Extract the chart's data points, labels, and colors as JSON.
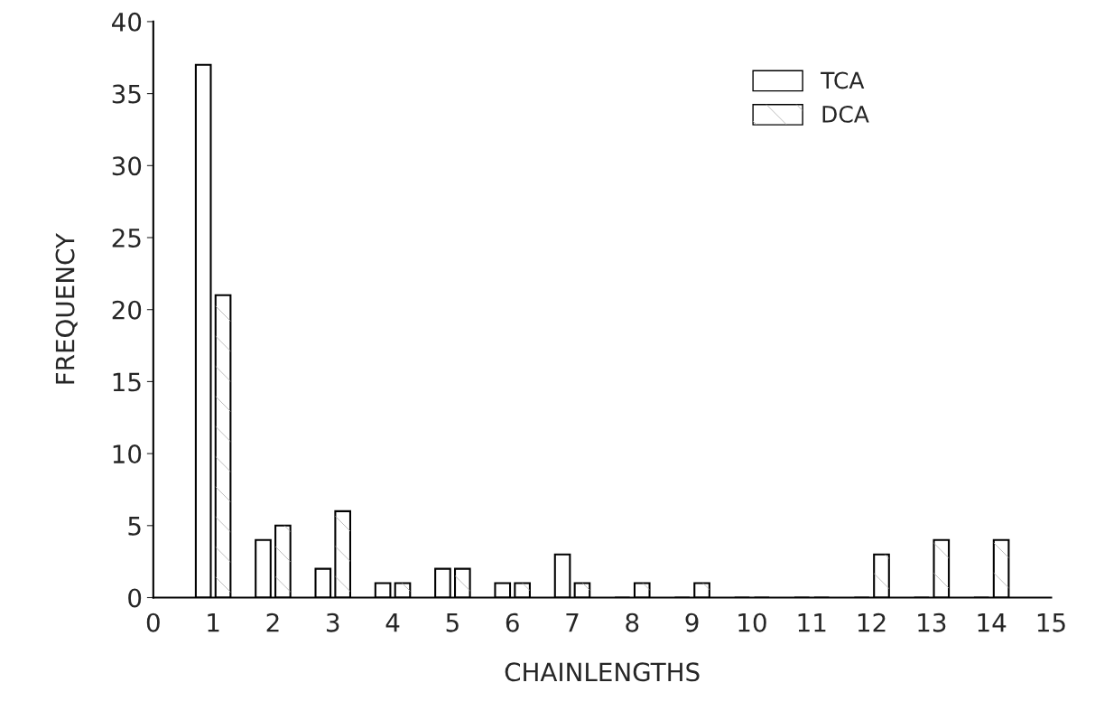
{
  "chart_data": {
    "type": "bar",
    "xlabel": "CHAINLENGTHS",
    "ylabel": "FREQUENCY",
    "x": [
      1,
      2,
      3,
      4,
      5,
      6,
      7,
      8,
      9,
      10,
      11,
      12,
      13,
      14
    ],
    "series": [
      {
        "name": "TCA",
        "color": "#ffffff",
        "values": [
          37,
          4,
          2,
          1,
          2,
          1,
          3,
          0,
          0,
          0,
          0,
          0,
          0,
          0
        ]
      },
      {
        "name": "DCA",
        "color": "#ffffff",
        "values": [
          21,
          5,
          6,
          1,
          2,
          1,
          1,
          1,
          1,
          0,
          0,
          3,
          4,
          4
        ]
      }
    ],
    "xlim": [
      0,
      15
    ],
    "xticks": [
      0,
      1,
      2,
      3,
      4,
      5,
      6,
      7,
      8,
      9,
      10,
      11,
      12,
      13,
      14,
      15
    ],
    "ylim": [
      0,
      40
    ],
    "yticks": [
      0,
      5,
      10,
      15,
      20,
      25,
      30,
      35,
      40
    ],
    "grid": false,
    "legend": "top right"
  }
}
